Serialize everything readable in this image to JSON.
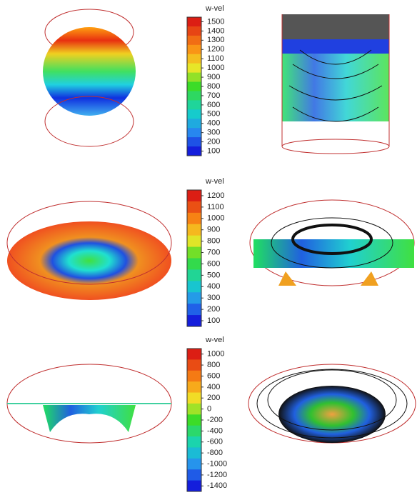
{
  "panels": [
    {
      "label": "w-vel",
      "ticks": [
        1500,
        1400,
        1300,
        1200,
        1100,
        1000,
        900,
        800,
        700,
        600,
        500,
        400,
        300,
        200,
        100
      ]
    },
    {
      "label": "w-vel",
      "ticks": [
        1200,
        1100,
        1000,
        900,
        800,
        700,
        600,
        500,
        400,
        300,
        200,
        100
      ]
    },
    {
      "label": "w-vel",
      "ticks": [
        1000,
        800,
        600,
        400,
        200,
        0,
        -200,
        -400,
        -600,
        -800,
        -1000,
        -1200,
        -1400
      ]
    }
  ]
}
